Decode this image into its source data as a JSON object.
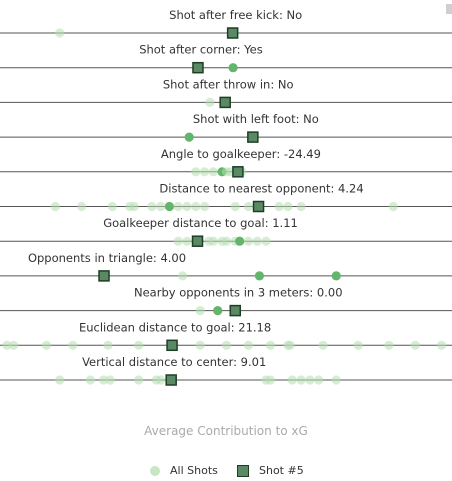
{
  "chart_data": {
    "type": "scatter",
    "x_range": [
      0,
      1
    ],
    "x_title": "Average Contribution to xG",
    "legend": {
      "all": "All Shots",
      "shot": "Shot #5",
      "placement": "bottom"
    },
    "colors": {
      "all_shots": "#b5deb0",
      "highlight": "#62b56a",
      "shot_fill": "#5a8a63",
      "shot_border": "#1e3d26",
      "line": "#555555"
    },
    "features": [
      {
        "label": "Shot after free kick: No",
        "shot": 0.514,
        "points": [
          0.12,
          0.514
        ],
        "highlight": []
      },
      {
        "label": "Shot after corner: Yes",
        "shot": 0.435,
        "points": [
          0.435,
          0.515
        ],
        "highlight": [
          0.515
        ]
      },
      {
        "label": "Shot after throw in: No",
        "shot": 0.497,
        "points": [
          0.462,
          0.497
        ],
        "highlight": []
      },
      {
        "label": "Shot with left foot: No",
        "shot": 0.56,
        "points": [
          0.415,
          0.56
        ],
        "highlight": [
          0.415
        ]
      },
      {
        "label": "Angle to goalkeeper: -24.49",
        "shot": 0.526,
        "points": [
          0.43,
          0.45,
          0.47,
          0.49,
          0.5,
          0.51,
          0.526,
          0.535
        ],
        "highlight": [
          0.49
        ]
      },
      {
        "label": "Distance to nearest opponent: 4.24",
        "shot": 0.573,
        "points": [
          0.11,
          0.17,
          0.24,
          0.28,
          0.29,
          0.33,
          0.35,
          0.37,
          0.39,
          0.41,
          0.43,
          0.45,
          0.52,
          0.55,
          0.573,
          0.62,
          0.64,
          0.67,
          0.88
        ],
        "highlight": [
          0.37
        ]
      },
      {
        "label": "Goalkeeper distance to goal: 1.11",
        "shot": 0.434,
        "points": [
          0.39,
          0.41,
          0.434,
          0.46,
          0.47,
          0.49,
          0.5,
          0.52,
          0.53,
          0.55,
          0.57,
          0.59
        ],
        "highlight": [
          0.53
        ]
      },
      {
        "label": "Opponents in triangle: 4.00",
        "shot": 0.221,
        "points": [
          0.221,
          0.4,
          0.575,
          0.75
        ],
        "highlight": [
          0.575,
          0.75
        ]
      },
      {
        "label": "Nearby opponents in 3 meters: 0.00",
        "shot": 0.52,
        "points": [
          0.44,
          0.48,
          0.52
        ],
        "highlight": [
          0.48
        ]
      },
      {
        "label": "Euclidean distance to goal: 21.18",
        "shot": 0.376,
        "points": [
          0.0,
          0.015,
          0.09,
          0.15,
          0.23,
          0.3,
          0.376,
          0.44,
          0.5,
          0.55,
          0.6,
          0.64,
          0.645,
          0.72,
          0.8,
          0.87,
          0.93,
          0.99
        ],
        "highlight": []
      },
      {
        "label": "Vertical distance to center: 9.01",
        "shot": 0.374,
        "points": [
          0.12,
          0.19,
          0.22,
          0.235,
          0.3,
          0.34,
          0.35,
          0.374,
          0.59,
          0.6,
          0.65,
          0.67,
          0.69,
          0.71,
          0.75
        ],
        "highlight": []
      }
    ]
  }
}
